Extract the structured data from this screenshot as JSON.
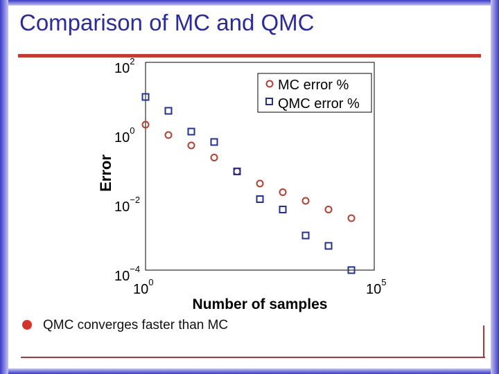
{
  "slide": {
    "title": "Comparison of MC and QMC",
    "bullet": "QMC converges faster than MC"
  },
  "colors": {
    "title": "#2a2aa8",
    "accent_rule": "#d8332a",
    "mc": "#c0392b",
    "qmc": "#1f2f9c"
  },
  "chart_data": {
    "type": "scatter",
    "title": "",
    "xlabel": "Number of samples",
    "ylabel": "Error",
    "xscale": "log",
    "yscale": "log",
    "xlim_exp": [
      0,
      5
    ],
    "ylim_exp": [
      -4,
      2
    ],
    "x_ticks": [
      {
        "base": "10",
        "exp": "0"
      },
      {
        "base": "10",
        "exp": "5"
      }
    ],
    "y_ticks": [
      {
        "base": "10",
        "exp": "2",
        "value_exp": 2
      },
      {
        "base": "10",
        "exp": "0",
        "value_exp": 0
      },
      {
        "base": "10",
        "exp": "−2",
        "value_exp": -2
      },
      {
        "base": "10",
        "exp": "−4",
        "value_exp": -4
      }
    ],
    "legend_position": "top-right",
    "series": [
      {
        "name": "MC error %",
        "marker": "circle",
        "color": "#c0392b",
        "x_log10": [
          0,
          0.5,
          1,
          1.5,
          2,
          2.5,
          3,
          3.5,
          4,
          4.5
        ],
        "y_log10": [
          0.2,
          -0.1,
          -0.4,
          -0.75,
          -1.15,
          -1.5,
          -1.75,
          -2.0,
          -2.25,
          -2.5
        ]
      },
      {
        "name": "QMC error %",
        "marker": "square",
        "color": "#1f2f9c",
        "x_log10": [
          0,
          0.5,
          1,
          1.5,
          2,
          2.5,
          3,
          3.5,
          4,
          4.5
        ],
        "y_log10": [
          1.0,
          0.6,
          0.0,
          -0.3,
          -1.15,
          -1.95,
          -2.25,
          -3.0,
          -3.3,
          -4.0
        ]
      }
    ]
  }
}
